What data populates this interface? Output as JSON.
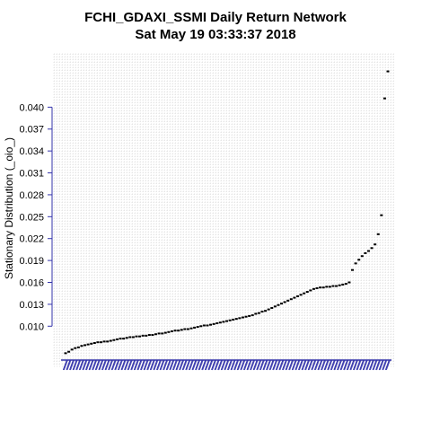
{
  "chart_data": {
    "type": "scatter",
    "title": "FCHI_GDAXI_SSMI  Daily Return Network",
    "subtitle": "Sat May 19 03:33:37 2018",
    "ylabel": "Stationary Distribution (_oio_)",
    "xlabel": "",
    "yticks": [
      "0.010",
      "0.013",
      "0.016",
      "0.019",
      "0.022",
      "0.025",
      "0.028",
      "0.031",
      "0.034",
      "0.037",
      "0.040"
    ],
    "ylim": [
      0.0045,
      0.0473
    ],
    "grid": true,
    "colors": {
      "axis": "#3333aa",
      "grid": "#c8c8c8",
      "points": "#000000"
    },
    "values": [
      0.0063,
      0.0065,
      0.0068,
      0.007,
      0.0071,
      0.0073,
      0.0074,
      0.0075,
      0.0076,
      0.0077,
      0.0078,
      0.0078,
      0.0079,
      0.0079,
      0.008,
      0.0081,
      0.0082,
      0.0083,
      0.0083,
      0.0084,
      0.0085,
      0.0085,
      0.0086,
      0.0086,
      0.0087,
      0.0087,
      0.0088,
      0.0088,
      0.0089,
      0.009,
      0.009,
      0.0091,
      0.0092,
      0.0093,
      0.0094,
      0.0094,
      0.0095,
      0.0096,
      0.0096,
      0.0097,
      0.0098,
      0.0099,
      0.01,
      0.0101,
      0.0101,
      0.0102,
      0.0103,
      0.0104,
      0.0105,
      0.0106,
      0.0107,
      0.0108,
      0.0109,
      0.011,
      0.0111,
      0.0112,
      0.0113,
      0.0114,
      0.0115,
      0.0117,
      0.0118,
      0.012,
      0.0121,
      0.0123,
      0.0125,
      0.0127,
      0.0129,
      0.0131,
      0.0133,
      0.0135,
      0.0137,
      0.0139,
      0.0141,
      0.0143,
      0.0145,
      0.0147,
      0.0149,
      0.0151,
      0.0152,
      0.0153,
      0.0153,
      0.0154,
      0.0154,
      0.0155,
      0.0155,
      0.0156,
      0.0157,
      0.0158,
      0.016,
      0.0177,
      0.0186,
      0.0191,
      0.0196,
      0.02,
      0.0203,
      0.0207,
      0.0212,
      0.0226,
      0.0252,
      0.0412,
      0.0449
    ]
  }
}
